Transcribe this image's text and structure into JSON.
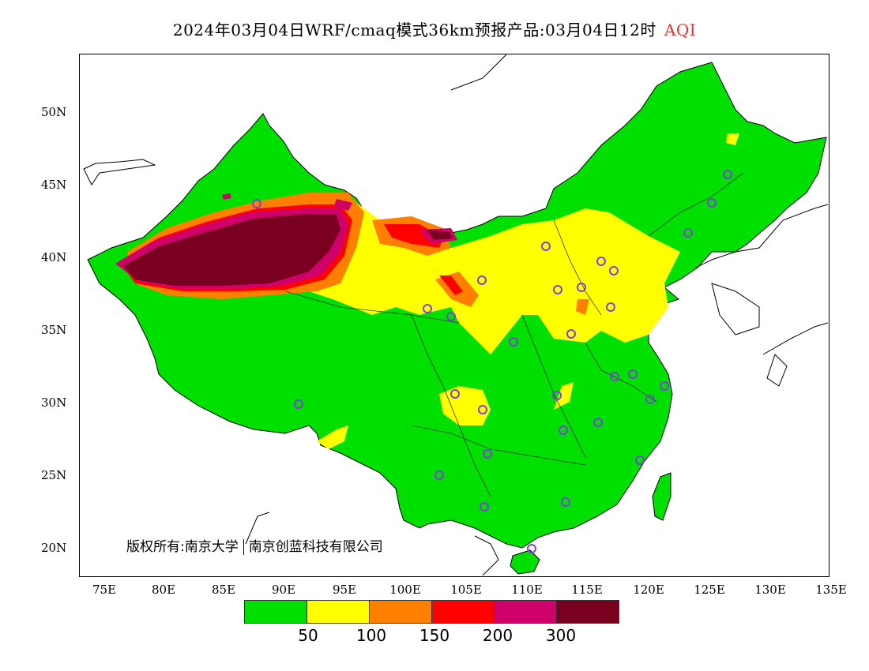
{
  "title": {
    "main": "2024年03月04日WRF/cmaq模式36km预报产品:03月04日12时",
    "variable": "AQI",
    "variable_color": "#e03030"
  },
  "axes": {
    "lat_labels": [
      "50N",
      "45N",
      "40N",
      "35N",
      "30N",
      "25N",
      "20N"
    ],
    "lon_labels": [
      "75E",
      "80E",
      "85E",
      "90E",
      "95E",
      "100E",
      "105E",
      "110E",
      "115E",
      "120E",
      "125E",
      "130E",
      "135E"
    ]
  },
  "copyright": {
    "left": "版权所有:南京大学",
    "right": "南京创蓝科技有限公司"
  },
  "legend": {
    "colors": [
      "#00e000",
      "#ffff00",
      "#ff8000",
      "#ff0000",
      "#d0006a",
      "#7a0020"
    ],
    "ticks": [
      "50",
      "100",
      "150",
      "200",
      "300"
    ]
  },
  "map": {
    "background": "#ffffff",
    "land_fill": "#00e000",
    "stations_count_note": "",
    "station_marker_color": "#8040e0"
  }
}
